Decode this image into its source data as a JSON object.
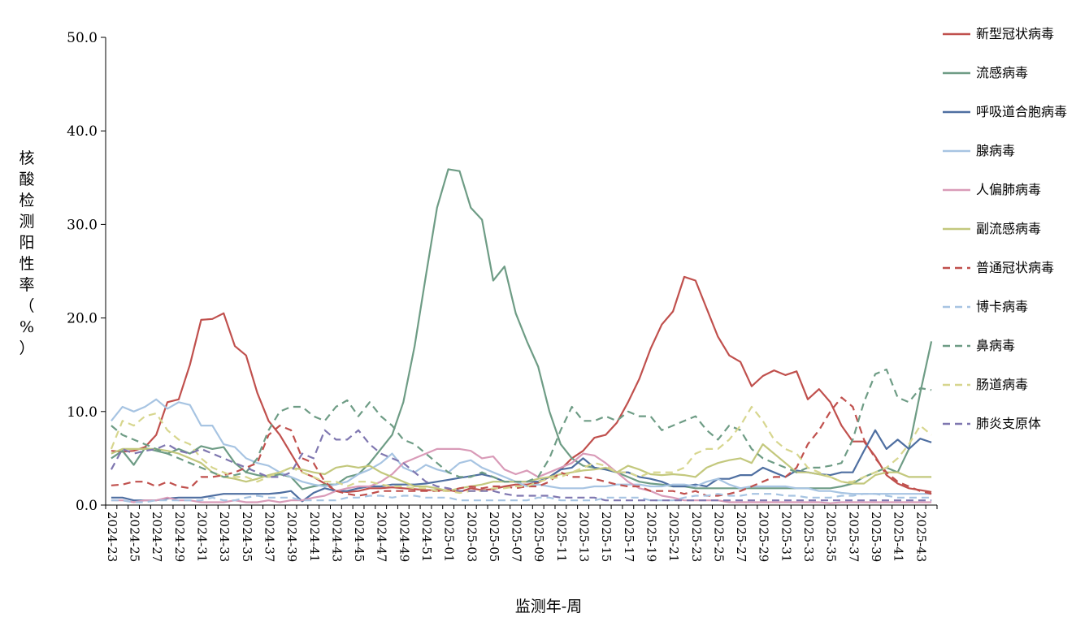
{
  "chart_data": {
    "type": "line",
    "title": "",
    "xlabel": "监测年-周",
    "ylabel": "核酸检测阳性率（%）",
    "ylim": [
      0,
      50
    ],
    "yticks": [
      "0.0",
      "10.0",
      "20.0",
      "30.0",
      "40.0",
      "50.0"
    ],
    "legend_position": "right",
    "grid": false,
    "x_tick_labels": [
      "2024-23",
      "2024-25",
      "2024-27",
      "2024-29",
      "2024-31",
      "2024-33",
      "2024-35",
      "2024-37",
      "2024-39",
      "2024-41",
      "2024-43",
      "2024-45",
      "2024-47",
      "2024-49",
      "2024-51",
      "2025-01",
      "2025-03",
      "2025-05",
      "2025-07",
      "2025-09",
      "2025-11",
      "2025-13",
      "2025-15",
      "2025-17",
      "2025-19",
      "2025-21",
      "2025-23",
      "2025-25",
      "2025-27",
      "2025-29",
      "2025-31",
      "2025-33",
      "2025-35",
      "2025-37",
      "2025-39",
      "2025-41",
      "2025-43"
    ],
    "x": [
      "2024-23",
      "2024-24",
      "2024-25",
      "2024-26",
      "2024-27",
      "2024-28",
      "2024-29",
      "2024-30",
      "2024-31",
      "2024-32",
      "2024-33",
      "2024-34",
      "2024-35",
      "2024-36",
      "2024-37",
      "2024-38",
      "2024-39",
      "2024-40",
      "2024-41",
      "2024-42",
      "2024-43",
      "2024-44",
      "2024-45",
      "2024-46",
      "2024-47",
      "2024-48",
      "2024-49",
      "2024-50",
      "2024-51",
      "2024-52",
      "2025-01",
      "2025-02",
      "2025-03",
      "2025-04",
      "2025-05",
      "2025-06",
      "2025-07",
      "2025-08",
      "2025-09",
      "2025-10",
      "2025-11",
      "2025-12",
      "2025-13",
      "2025-14",
      "2025-15",
      "2025-16",
      "2025-17",
      "2025-18",
      "2025-19",
      "2025-20",
      "2025-21",
      "2025-22",
      "2025-23",
      "2025-24",
      "2025-25",
      "2025-26",
      "2025-27",
      "2025-28",
      "2025-29",
      "2025-30",
      "2025-31",
      "2025-32",
      "2025-33",
      "2025-34",
      "2025-35",
      "2025-36",
      "2025-37",
      "2025-38",
      "2025-39",
      "2025-40",
      "2025-41",
      "2025-42",
      "2025-43",
      "2025-44"
    ],
    "series": [
      {
        "name": "新型冠状病毒",
        "color": "#c0504d",
        "dash": false,
        "values": [
          5.8,
          5.7,
          5.8,
          6.2,
          7.5,
          11.0,
          11.3,
          15.0,
          19.8,
          19.9,
          20.5,
          17.0,
          16.0,
          12.0,
          9.0,
          7.5,
          5.5,
          3.5,
          3.0,
          2.3,
          1.5,
          1.4,
          1.5,
          1.8,
          1.8,
          1.9,
          1.8,
          1.7,
          1.6,
          1.6,
          1.6,
          1.4,
          1.8,
          1.6,
          1.7,
          2.0,
          2.2,
          2.2,
          2.4,
          3.0,
          3.8,
          5.0,
          5.8,
          7.2,
          7.5,
          8.8,
          11.0,
          13.5,
          16.7,
          19.3,
          20.7,
          24.4,
          24.0,
          21.0,
          18.0,
          16.0,
          15.3,
          12.7,
          13.8,
          14.4,
          13.9,
          14.3,
          11.3,
          12.4,
          11.0,
          8.5,
          6.8,
          6.8,
          5.2,
          3.2,
          2.3,
          1.8,
          1.6,
          1.4
        ]
      },
      {
        "name": "流感病毒",
        "color": "#6e9c85",
        "dash": false,
        "values": [
          5.0,
          5.8,
          4.3,
          6.1,
          5.8,
          5.5,
          6.0,
          5.5,
          6.3,
          6.0,
          6.2,
          4.5,
          3.5,
          3.2,
          3.0,
          3.3,
          3.0,
          1.7,
          2.0,
          2.2,
          2.2,
          3.0,
          3.3,
          4.5,
          6.0,
          7.5,
          11.0,
          17.0,
          24.5,
          31.8,
          35.9,
          35.7,
          31.8,
          30.5,
          24.0,
          25.5,
          20.5,
          17.5,
          14.8,
          10.0,
          6.5,
          5.0,
          4.2,
          4.0,
          3.8,
          3.5,
          3.0,
          2.5,
          2.3,
          2.2,
          2.0,
          2.0,
          1.8,
          1.8,
          1.8,
          1.8,
          1.8,
          1.8,
          1.8,
          1.8,
          1.8,
          1.8,
          1.8,
          1.8,
          1.8,
          2.0,
          2.3,
          3.0,
          3.5,
          4.0,
          3.5,
          6.0,
          12.0,
          17.5
        ]
      },
      {
        "name": "呼吸道合胞病毒",
        "color": "#4f6fa1",
        "dash": false,
        "values": [
          0.8,
          0.8,
          0.5,
          0.5,
          0.5,
          0.7,
          0.8,
          0.8,
          0.8,
          1.0,
          1.2,
          1.2,
          1.2,
          1.2,
          1.2,
          1.3,
          1.5,
          0.4,
          1.3,
          1.8,
          1.5,
          1.5,
          1.8,
          2.0,
          2.0,
          2.2,
          2.2,
          2.2,
          2.3,
          2.5,
          2.7,
          2.9,
          3.1,
          3.3,
          3.0,
          2.5,
          2.5,
          2.5,
          2.5,
          3.0,
          3.8,
          4.0,
          5.0,
          4.0,
          3.8,
          3.5,
          3.5,
          3.0,
          2.8,
          2.5,
          2.0,
          2.0,
          2.2,
          2.0,
          2.8,
          2.8,
          3.2,
          3.2,
          4.0,
          3.5,
          3.0,
          3.7,
          3.5,
          3.3,
          3.2,
          3.5,
          3.5,
          5.8,
          8.0,
          6.0,
          7.0,
          6.0,
          7.1,
          6.7
        ]
      },
      {
        "name": "腺病毒",
        "color": "#a7c4e2",
        "dash": false,
        "values": [
          9.0,
          10.5,
          10.0,
          10.5,
          11.3,
          10.3,
          11.0,
          10.7,
          8.5,
          8.5,
          6.5,
          6.2,
          5.0,
          4.5,
          4.2,
          3.5,
          3.0,
          2.5,
          2.2,
          2.0,
          2.2,
          2.5,
          3.3,
          3.8,
          4.5,
          5.5,
          4.0,
          3.5,
          4.3,
          3.8,
          3.5,
          4.5,
          4.8,
          4.0,
          3.5,
          3.0,
          2.5,
          2.0,
          2.2,
          2.0,
          1.8,
          1.8,
          1.8,
          2.0,
          2.0,
          2.2,
          2.2,
          2.2,
          2.0,
          2.0,
          2.2,
          2.2,
          2.0,
          2.5,
          2.8,
          2.2,
          1.8,
          2.0,
          2.0,
          2.0,
          2.0,
          1.8,
          1.8,
          1.5,
          1.5,
          1.3,
          1.2,
          1.2,
          1.2,
          1.2,
          1.2,
          1.2,
          1.2,
          1.2
        ]
      },
      {
        "name": "人偏肺病毒",
        "color": "#d99bb8",
        "dash": false,
        "values": [
          0.5,
          0.5,
          0.3,
          0.5,
          0.5,
          0.8,
          0.5,
          0.5,
          0.3,
          0.3,
          0.3,
          0.5,
          0.3,
          0.3,
          0.5,
          0.3,
          0.5,
          0.5,
          0.8,
          1.0,
          1.5,
          1.8,
          2.0,
          2.0,
          2.5,
          3.3,
          4.5,
          5.0,
          5.5,
          6.0,
          6.0,
          6.0,
          5.8,
          5.0,
          5.2,
          3.8,
          3.3,
          3.7,
          3.0,
          3.5,
          4.0,
          4.5,
          5.5,
          5.3,
          4.5,
          3.5,
          2.5,
          1.8,
          1.5,
          1.0,
          0.8,
          0.5,
          0.5,
          0.5,
          0.5,
          0.3,
          0.3,
          0.3,
          0.3,
          0.3,
          0.3,
          0.3,
          0.3,
          0.3,
          0.2,
          0.3,
          0.3,
          0.3,
          0.3,
          0.3,
          0.3,
          0.3,
          0.3,
          0.3
        ]
      },
      {
        "name": "副流感病毒",
        "color": "#c3c87d",
        "dash": false,
        "values": [
          5.5,
          6.0,
          6.0,
          6.0,
          6.0,
          5.8,
          5.5,
          5.0,
          4.5,
          3.5,
          3.0,
          2.8,
          2.5,
          2.8,
          3.2,
          3.5,
          4.0,
          3.8,
          3.5,
          3.3,
          4.0,
          4.2,
          4.0,
          4.2,
          3.5,
          3.0,
          2.5,
          2.0,
          2.0,
          1.8,
          1.5,
          1.8,
          2.0,
          2.2,
          2.5,
          2.5,
          2.5,
          2.5,
          2.8,
          3.0,
          3.3,
          3.5,
          3.7,
          3.8,
          4.0,
          3.5,
          4.2,
          3.8,
          3.3,
          3.2,
          3.3,
          3.2,
          3.0,
          4.0,
          4.5,
          4.8,
          5.0,
          4.5,
          6.5,
          5.5,
          4.5,
          3.5,
          3.5,
          3.3,
          3.0,
          2.5,
          2.3,
          2.3,
          3.2,
          3.5,
          3.5,
          3.0,
          3.0,
          3.0
        ]
      },
      {
        "name": "普通冠状病毒",
        "color": "#c0504d",
        "dash": true,
        "values": [
          2.1,
          2.2,
          2.5,
          2.5,
          2.0,
          2.5,
          2.0,
          1.8,
          3.0,
          3.0,
          3.2,
          3.5,
          4.0,
          4.5,
          7.5,
          8.5,
          8.0,
          5.0,
          4.5,
          2.5,
          1.5,
          1.2,
          1.0,
          1.2,
          1.5,
          1.5,
          1.5,
          1.5,
          1.5,
          1.5,
          1.5,
          1.8,
          2.0,
          1.8,
          2.0,
          2.0,
          1.8,
          2.0,
          2.0,
          2.5,
          3.5,
          3.0,
          3.0,
          2.8,
          2.5,
          2.2,
          2.0,
          2.0,
          1.5,
          1.5,
          1.5,
          1.2,
          1.5,
          1.0,
          1.0,
          1.2,
          1.5,
          2.0,
          2.5,
          3.0,
          3.0,
          4.0,
          6.5,
          8.0,
          10.0,
          11.5,
          10.5,
          7.0,
          5.0,
          3.5,
          2.5,
          2.0,
          1.5,
          1.2
        ]
      },
      {
        "name": "博卡病毒",
        "color": "#a7c4e2",
        "dash": true,
        "values": [
          0.5,
          0.5,
          0.3,
          0.3,
          0.5,
          0.5,
          0.5,
          0.5,
          0.5,
          0.8,
          0.5,
          0.5,
          0.8,
          1.0,
          0.8,
          0.8,
          0.8,
          0.5,
          0.5,
          0.5,
          0.5,
          0.8,
          0.8,
          1.0,
          1.0,
          0.8,
          1.0,
          1.0,
          0.8,
          0.8,
          0.8,
          0.5,
          0.5,
          0.5,
          0.5,
          0.5,
          0.5,
          0.5,
          0.8,
          0.8,
          0.5,
          0.5,
          0.5,
          0.5,
          0.8,
          0.8,
          0.8,
          0.8,
          0.5,
          0.5,
          0.5,
          0.8,
          1.0,
          1.0,
          1.2,
          1.0,
          1.0,
          1.2,
          1.2,
          1.2,
          1.0,
          1.0,
          0.8,
          0.8,
          0.8,
          1.0,
          1.0,
          1.2,
          1.2,
          1.0,
          0.8,
          0.8,
          0.8,
          0.8
        ]
      },
      {
        "name": "鼻病毒",
        "color": "#6e9c85",
        "dash": true,
        "values": [
          8.5,
          7.5,
          7.0,
          6.5,
          6.0,
          5.5,
          5.0,
          4.5,
          4.0,
          3.5,
          3.0,
          3.2,
          3.5,
          5.0,
          8.0,
          10.0,
          10.5,
          10.5,
          9.5,
          9.0,
          10.5,
          11.2,
          9.5,
          11.0,
          9.5,
          8.5,
          7.0,
          6.5,
          5.5,
          4.5,
          3.5,
          3.0,
          3.0,
          3.5,
          3.0,
          2.5,
          2.5,
          2.5,
          3.0,
          5.0,
          8.0,
          10.5,
          9.0,
          9.0,
          9.5,
          9.0,
          10.0,
          9.5,
          9.5,
          8.0,
          8.5,
          9.0,
          9.5,
          8.0,
          7.0,
          8.5,
          8.0,
          6.0,
          5.0,
          4.5,
          4.0,
          3.5,
          4.0,
          4.0,
          4.2,
          4.5,
          7.0,
          11.0,
          14.0,
          14.5,
          11.5,
          11.0,
          12.5,
          12.3
        ]
      },
      {
        "name": "肠道病毒",
        "color": "#d7d68e",
        "dash": true,
        "values": [
          6.0,
          9.0,
          8.5,
          9.5,
          9.8,
          8.0,
          7.0,
          6.5,
          5.0,
          4.0,
          3.5,
          3.0,
          3.0,
          2.5,
          3.0,
          3.5,
          4.0,
          3.5,
          3.0,
          2.5,
          2.5,
          2.0,
          2.5,
          2.5,
          2.2,
          2.0,
          2.0,
          1.8,
          1.8,
          1.5,
          1.5,
          1.3,
          1.5,
          1.5,
          1.8,
          1.8,
          2.0,
          2.0,
          2.5,
          2.8,
          3.0,
          3.5,
          4.0,
          4.5,
          4.2,
          3.5,
          3.5,
          3.0,
          3.5,
          3.5,
          3.5,
          4.0,
          5.5,
          6.0,
          6.0,
          7.0,
          8.5,
          10.5,
          9.0,
          7.0,
          6.0,
          5.5,
          4.0,
          3.5,
          3.0,
          2.5,
          2.5,
          3.0,
          3.5,
          4.0,
          5.0,
          6.5,
          8.5,
          7.5
        ]
      },
      {
        "name": "肺炎支原体",
        "color": "#7f77b0",
        "dash": true,
        "values": [
          3.8,
          6.0,
          5.5,
          5.8,
          6.0,
          6.5,
          5.8,
          5.5,
          6.0,
          5.5,
          5.0,
          4.5,
          4.0,
          3.5,
          3.0,
          3.0,
          3.5,
          5.5,
          5.0,
          8.0,
          7.0,
          7.0,
          8.0,
          6.5,
          5.5,
          5.0,
          4.5,
          3.5,
          2.5,
          2.0,
          1.8,
          1.5,
          1.5,
          1.5,
          1.5,
          1.2,
          1.0,
          1.0,
          1.0,
          1.0,
          0.8,
          0.8,
          0.8,
          0.8,
          0.5,
          0.5,
          0.5,
          0.5,
          0.5,
          0.5,
          0.5,
          0.5,
          0.5,
          0.5,
          0.5,
          0.5,
          0.5,
          0.5,
          0.5,
          0.5,
          0.5,
          0.5,
          0.5,
          0.5,
          0.5,
          0.5,
          0.5,
          0.5,
          0.5,
          0.5,
          0.5,
          0.5,
          0.5,
          0.5
        ]
      }
    ]
  }
}
